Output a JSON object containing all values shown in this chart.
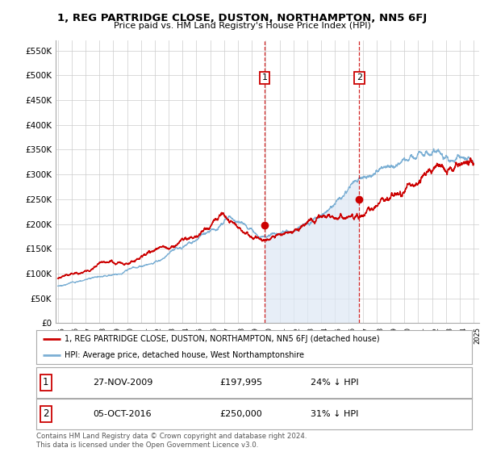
{
  "title": "1, REG PARTRIDGE CLOSE, DUSTON, NORTHAMPTON, NN5 6FJ",
  "subtitle": "Price paid vs. HM Land Registry's House Price Index (HPI)",
  "ylim": [
    0,
    570000
  ],
  "yticks": [
    0,
    50000,
    100000,
    150000,
    200000,
    250000,
    300000,
    350000,
    400000,
    450000,
    500000,
    550000
  ],
  "sale1_date": 2009.92,
  "sale1_price": 197995,
  "sale2_date": 2016.75,
  "sale2_price": 250000,
  "red_line_color": "#cc0000",
  "blue_line_color": "#7bafd4",
  "blue_fill_color": "#dde8f5",
  "marker_color": "#cc0000",
  "vline_color": "#cc0000",
  "box_color": "#cc0000",
  "grid_color": "#cccccc",
  "background_color": "#ffffff",
  "legend_label_red": "1, REG PARTRIDGE CLOSE, DUSTON, NORTHAMPTON, NN5 6FJ (detached house)",
  "legend_label_blue": "HPI: Average price, detached house, West Northamptonshire",
  "table_row1": [
    "1",
    "27-NOV-2009",
    "£197,995",
    "24% ↓ HPI"
  ],
  "table_row2": [
    "2",
    "05-OCT-2016",
    "£250,000",
    "31% ↓ HPI"
  ],
  "footnote": "Contains HM Land Registry data © Crown copyright and database right 2024.\nThis data is licensed under the Open Government Licence v3.0."
}
